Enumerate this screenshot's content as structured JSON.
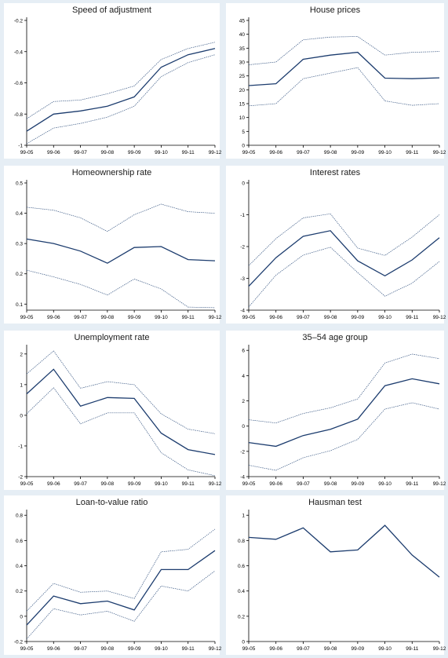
{
  "chart_data": [
    {
      "id": "speed",
      "type": "line",
      "title": "Speed of adjustment",
      "categories": [
        "99-05",
        "99-06",
        "99-07",
        "99-08",
        "99-09",
        "99-10",
        "99-11",
        "99-12"
      ],
      "ylim": [
        -1,
        -0.2
      ],
      "yticks": [
        -1,
        -0.8,
        -0.6,
        -0.4,
        -0.2
      ],
      "yticklabels": [
        "-1",
        "-0.8",
        "-0.6",
        "-0.4",
        "-0.2"
      ],
      "series": [
        {
          "role": "upper",
          "values": [
            -0.83,
            -0.72,
            -0.71,
            -0.67,
            -0.62,
            -0.45,
            -0.38,
            -0.34
          ]
        },
        {
          "role": "estimate",
          "values": [
            -0.91,
            -0.8,
            -0.78,
            -0.75,
            -0.69,
            -0.5,
            -0.42,
            -0.38
          ]
        },
        {
          "role": "lower",
          "values": [
            -0.99,
            -0.89,
            -0.86,
            -0.82,
            -0.75,
            -0.56,
            -0.47,
            -0.42
          ]
        }
      ]
    },
    {
      "id": "house_prices",
      "type": "line",
      "title": "House prices",
      "categories": [
        "99-05",
        "99-06",
        "99-07",
        "99-08",
        "99-09",
        "99-10",
        "99-11",
        "99-12"
      ],
      "ylim": [
        0,
        45
      ],
      "yticks": [
        0,
        5,
        10,
        15,
        20,
        25,
        30,
        35,
        40,
        45
      ],
      "yticklabels": [
        "0",
        "5",
        "10",
        "15",
        "20",
        "25",
        "30",
        "35",
        "40",
        "45"
      ],
      "series": [
        {
          "role": "upper",
          "values": [
            29,
            30,
            38,
            39,
            39.2,
            32.5,
            33.5,
            33.8
          ]
        },
        {
          "role": "estimate",
          "values": [
            21.5,
            22.2,
            31,
            32.5,
            33.5,
            24.2,
            24,
            24.3
          ]
        },
        {
          "role": "lower",
          "values": [
            14.2,
            15,
            24,
            26,
            28,
            16,
            14.4,
            15
          ]
        }
      ]
    },
    {
      "id": "homeownership",
      "type": "line",
      "title": "Homeownership rate",
      "categories": [
        "99-05",
        "99-06",
        "99-07",
        "99-08",
        "99-09",
        "99-10",
        "99-11",
        "99-12"
      ],
      "ylim": [
        0.08,
        0.5
      ],
      "yticks": [
        0.1,
        0.2,
        0.3,
        0.4,
        0.5
      ],
      "yticklabels": [
        "0.1",
        "0.2",
        "0.3",
        "0.4",
        "0.5"
      ],
      "series": [
        {
          "role": "upper",
          "values": [
            0.42,
            0.41,
            0.385,
            0.34,
            0.395,
            0.43,
            0.405,
            0.4
          ]
        },
        {
          "role": "estimate",
          "values": [
            0.315,
            0.3,
            0.275,
            0.235,
            0.287,
            0.29,
            0.247,
            0.243
          ]
        },
        {
          "role": "lower",
          "values": [
            0.212,
            0.19,
            0.165,
            0.13,
            0.183,
            0.15,
            0.09,
            0.088
          ]
        }
      ]
    },
    {
      "id": "interest",
      "type": "line",
      "title": "Interest rates",
      "categories": [
        "99-05",
        "99-06",
        "99-07",
        "99-08",
        "99-09",
        "99-10",
        "99-11",
        "99-12"
      ],
      "ylim": [
        -4,
        0
      ],
      "yticks": [
        -4,
        -3,
        -2,
        -1,
        0
      ],
      "yticklabels": [
        "-4",
        "-3",
        "-2",
        "-1",
        "0"
      ],
      "series": [
        {
          "role": "upper",
          "values": [
            -2.6,
            -1.75,
            -1.1,
            -0.97,
            -2.05,
            -2.28,
            -1.7,
            -1.0
          ]
        },
        {
          "role": "estimate",
          "values": [
            -3.25,
            -2.35,
            -1.68,
            -1.5,
            -2.45,
            -2.92,
            -2.42,
            -1.72
          ]
        },
        {
          "role": "lower",
          "values": [
            -3.9,
            -2.9,
            -2.27,
            -2.02,
            -2.82,
            -3.56,
            -3.15,
            -2.47
          ]
        }
      ]
    },
    {
      "id": "unemployment",
      "type": "line",
      "title": "Unemployment rate",
      "categories": [
        "99-05",
        "99-06",
        "99-07",
        "99-08",
        "99-09",
        "99-10",
        "99-11",
        "99-12"
      ],
      "ylim": [
        -2,
        2.2
      ],
      "yticks": [
        -2,
        -1,
        0,
        1,
        2
      ],
      "yticklabels": [
        "-2",
        "-1",
        "0",
        "1",
        "2"
      ],
      "series": [
        {
          "role": "upper",
          "values": [
            1.35,
            2.1,
            0.88,
            1.1,
            1.0,
            0.05,
            -0.45,
            -0.6
          ]
        },
        {
          "role": "estimate",
          "values": [
            0.7,
            1.5,
            0.3,
            0.58,
            0.55,
            -0.58,
            -1.12,
            -1.28
          ]
        },
        {
          "role": "lower",
          "values": [
            0.05,
            0.9,
            -0.28,
            0.08,
            0.08,
            -1.22,
            -1.78,
            -1.97
          ]
        }
      ]
    },
    {
      "id": "age_group",
      "type": "line",
      "title": "35–54 age group",
      "categories": [
        "99-05",
        "99-06",
        "99-07",
        "99-08",
        "99-09",
        "99-10",
        "99-11",
        "99-12"
      ],
      "ylim": [
        -4,
        6.2
      ],
      "yticks": [
        -4,
        -2,
        0,
        2,
        4,
        6
      ],
      "yticklabels": [
        "-4",
        "-2",
        "0",
        "2",
        "4",
        "6"
      ],
      "series": [
        {
          "role": "upper",
          "values": [
            0.5,
            0.25,
            1.0,
            1.45,
            2.15,
            5.0,
            5.7,
            5.35
          ]
        },
        {
          "role": "estimate",
          "values": [
            -1.3,
            -1.6,
            -0.75,
            -0.25,
            0.55,
            3.2,
            3.75,
            3.35
          ]
        },
        {
          "role": "lower",
          "values": [
            -3.1,
            -3.5,
            -2.5,
            -1.95,
            -1.05,
            1.35,
            1.85,
            1.35
          ]
        }
      ]
    },
    {
      "id": "ltv",
      "type": "line",
      "title": "Loan-to-value ratio",
      "categories": [
        "99-05",
        "99-06",
        "99-07",
        "99-08",
        "99-09",
        "99-10",
        "99-11",
        "99-12"
      ],
      "ylim": [
        -0.2,
        0.82
      ],
      "yticks": [
        -0.2,
        0,
        0.2,
        0.4,
        0.6,
        0.8
      ],
      "yticklabels": [
        "-0.2",
        "0",
        "0.2",
        "0.4",
        "0.6",
        "0.8"
      ],
      "series": [
        {
          "role": "upper",
          "values": [
            0.04,
            0.26,
            0.19,
            0.2,
            0.14,
            0.51,
            0.53,
            0.69
          ]
        },
        {
          "role": "estimate",
          "values": [
            -0.07,
            0.16,
            0.1,
            0.12,
            0.05,
            0.37,
            0.37,
            0.52
          ]
        },
        {
          "role": "lower",
          "values": [
            -0.18,
            0.06,
            0.01,
            0.04,
            -0.04,
            0.24,
            0.2,
            0.36
          ]
        }
      ]
    },
    {
      "id": "hausman",
      "type": "line",
      "title": "Hausman test",
      "categories": [
        "99-05",
        "99-06",
        "99-07",
        "99-08",
        "99-09",
        "99-10",
        "99-11",
        "99-12"
      ],
      "ylim": [
        0,
        1.02
      ],
      "yticks": [
        0,
        0.2,
        0.4,
        0.6,
        0.8,
        1
      ],
      "yticklabels": [
        "0",
        "0.2",
        "0.4",
        "0.6",
        "0.8",
        "1"
      ],
      "series": [
        {
          "role": "estimate",
          "values": [
            0.825,
            0.81,
            0.9,
            0.71,
            0.725,
            0.92,
            0.685,
            0.51
          ]
        }
      ]
    }
  ],
  "colors": {
    "estimate_line": "#1c3c6e",
    "band_line": "#3c5a85",
    "axis": "#000000",
    "frame": "#e6eef5",
    "panel": "#ffffff"
  }
}
